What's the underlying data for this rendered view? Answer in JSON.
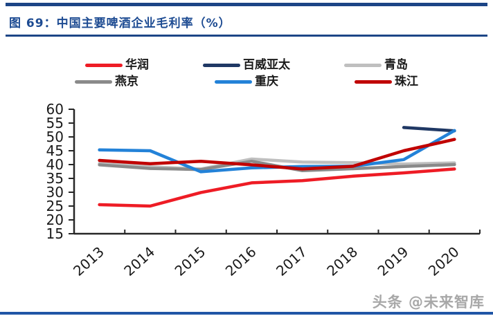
{
  "page": {
    "figure_label": "图 69：",
    "title": "中国主要啤酒企业毛利率（%）",
    "watermark": "头条 @未来智库"
  },
  "colors": {
    "title_blue": "#1D4B92",
    "rule_blue": "#1C4586",
    "bottom_rule_blue": "#2056A6",
    "axis": "#262626",
    "tick_label": "#1a1a1a",
    "watermark_gray": "#a8a8a8"
  },
  "chart_data": {
    "type": "line",
    "title": "中国主要啤酒企业毛利率（%）",
    "xlabel": "",
    "ylabel": "",
    "x": [
      "2013",
      "2014",
      "2015",
      "2016",
      "2017",
      "2018",
      "2019",
      "2020"
    ],
    "series": [
      {
        "name": "华润",
        "color": "#EE1C25",
        "values": [
          25.5,
          25.0,
          29.9,
          33.4,
          34.2,
          35.8,
          37.0,
          38.4
        ]
      },
      {
        "name": "百威亚太",
        "color": "#1F3864",
        "values": [
          null,
          null,
          null,
          null,
          null,
          null,
          53.4,
          52.2
        ]
      },
      {
        "name": "青岛",
        "color": "#BFBFBF",
        "values": [
          40.4,
          39.2,
          38.4,
          42.0,
          40.9,
          40.7,
          40.2,
          40.6
        ]
      },
      {
        "name": "燕京",
        "color": "#8A8A8A",
        "values": [
          39.9,
          38.6,
          38.2,
          41.2,
          37.8,
          38.5,
          39.3,
          40.0
        ]
      },
      {
        "name": "重庆",
        "color": "#2382D8",
        "values": [
          45.3,
          45.0,
          37.4,
          38.8,
          39.3,
          39.4,
          41.8,
          52.3
        ]
      },
      {
        "name": "珠江",
        "color": "#C00000",
        "values": [
          41.5,
          40.3,
          41.2,
          39.9,
          38.4,
          39.4,
          45.0,
          49.1
        ]
      }
    ],
    "ylim": [
      15,
      60
    ],
    "ytick_step": 5,
    "yticks": [
      15,
      20,
      25,
      30,
      35,
      40,
      45,
      50,
      55,
      60
    ],
    "grid": false,
    "legend_position": "top",
    "legend_rows": [
      [
        "华润",
        "百威亚太",
        "青岛"
      ],
      [
        "燕京",
        "重庆",
        "珠江"
      ]
    ]
  }
}
